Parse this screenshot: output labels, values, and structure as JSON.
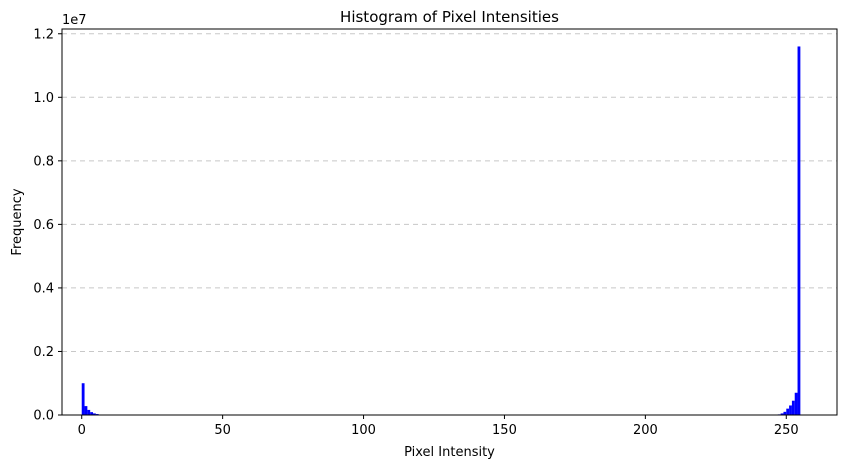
{
  "chart_data": {
    "type": "bar",
    "title": "Histogram of Pixel Intensities",
    "xlabel": "Pixel Intensity",
    "ylabel": "Frequency",
    "y_offset_label": "1e7",
    "xlim": [
      -7,
      268
    ],
    "ylim": [
      0,
      1.215
    ],
    "y_scale_factor": 10000000,
    "xticks": [
      0,
      50,
      100,
      150,
      200,
      250
    ],
    "yticks": [
      0.0,
      0.2,
      0.4,
      0.6,
      0.8,
      1.0,
      1.2
    ],
    "ytick_labels": [
      "0.0",
      "0.2",
      "0.4",
      "0.6",
      "0.8",
      "1.0",
      "1.2"
    ],
    "grid": "y-dashed",
    "bar_color": "#0000ff",
    "bins": [
      {
        "x": 0,
        "value": 1000000
      },
      {
        "x": 1,
        "value": 280000
      },
      {
        "x": 2,
        "value": 160000
      },
      {
        "x": 3,
        "value": 90000
      },
      {
        "x": 4,
        "value": 50000
      },
      {
        "x": 5,
        "value": 30000
      },
      {
        "x": 6,
        "value": 15000
      },
      {
        "x": 247,
        "value": 20000
      },
      {
        "x": 248,
        "value": 50000
      },
      {
        "x": 249,
        "value": 100000
      },
      {
        "x": 250,
        "value": 200000
      },
      {
        "x": 251,
        "value": 300000
      },
      {
        "x": 252,
        "value": 450000
      },
      {
        "x": 253,
        "value": 700000
      },
      {
        "x": 254,
        "value": 11600000
      }
    ]
  }
}
